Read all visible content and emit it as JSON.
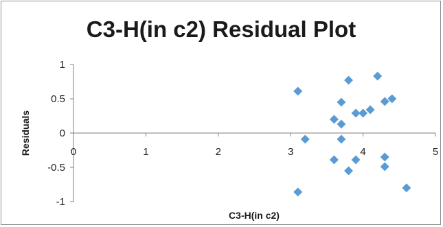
{
  "chart_data": {
    "type": "scatter",
    "title": "C3-H(in c2)  Residual Plot",
    "xlabel": "C3-H(in c2)",
    "ylabel": "Residuals",
    "xlim": [
      0,
      5
    ],
    "ylim": [
      -1,
      1
    ],
    "xticks": [
      "0",
      "1",
      "2",
      "3",
      "4",
      "5"
    ],
    "yticks": [
      "1",
      "0.5",
      "0",
      "-0.5",
      "-1"
    ],
    "grid": false,
    "legend": "none",
    "marker": "diamond",
    "marker_color": "#5b9bd5",
    "series": [
      {
        "points": [
          {
            "x": 3.1,
            "y": 0.61
          },
          {
            "x": 3.1,
            "y": -0.86
          },
          {
            "x": 3.2,
            "y": -0.09
          },
          {
            "x": 3.6,
            "y": 0.2
          },
          {
            "x": 3.6,
            "y": -0.39
          },
          {
            "x": 3.7,
            "y": 0.45
          },
          {
            "x": 3.7,
            "y": 0.13
          },
          {
            "x": 3.7,
            "y": -0.09
          },
          {
            "x": 3.8,
            "y": 0.77
          },
          {
            "x": 3.8,
            "y": -0.55
          },
          {
            "x": 3.9,
            "y": 0.29
          },
          {
            "x": 3.9,
            "y": -0.39
          },
          {
            "x": 4.0,
            "y": 0.29
          },
          {
            "x": 4.1,
            "y": 0.34
          },
          {
            "x": 4.2,
            "y": 0.83
          },
          {
            "x": 4.3,
            "y": 0.46
          },
          {
            "x": 4.3,
            "y": -0.35
          },
          {
            "x": 4.3,
            "y": -0.49
          },
          {
            "x": 4.4,
            "y": 0.5
          },
          {
            "x": 4.6,
            "y": -0.8
          }
        ]
      }
    ]
  }
}
